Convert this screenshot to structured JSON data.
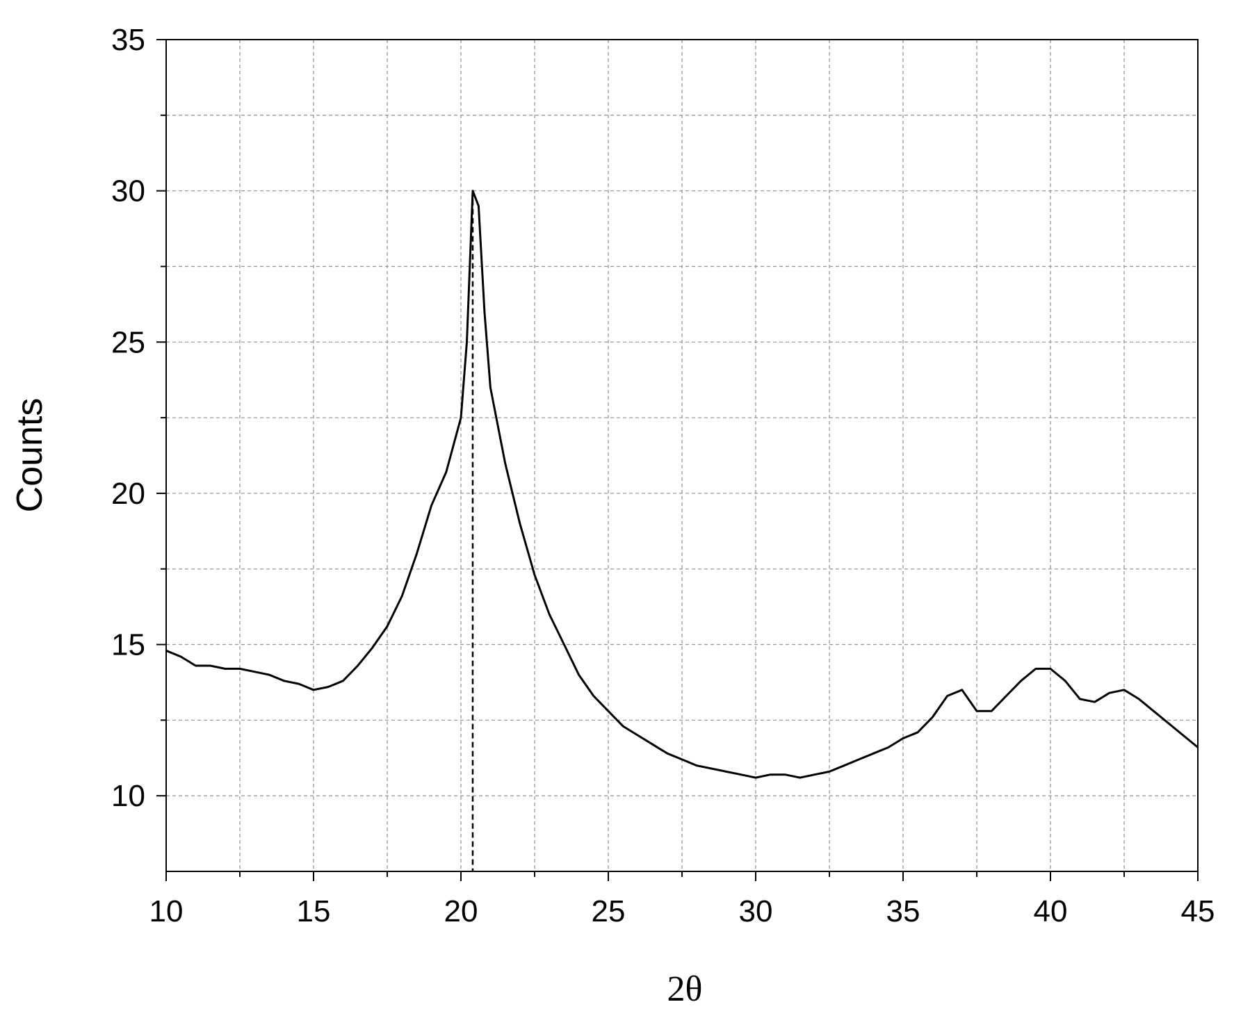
{
  "chart_data": {
    "type": "line",
    "x_label": "2θ",
    "y_label": "Counts",
    "x": [
      10,
      10.5,
      11,
      11.5,
      12,
      12.5,
      13,
      13.5,
      14,
      14.5,
      15,
      15.5,
      16,
      16.5,
      17,
      17.5,
      18,
      18.5,
      19,
      19.5,
      20,
      20.2,
      20.4,
      20.6,
      20.8,
      21,
      21.5,
      22,
      22.5,
      23,
      23.5,
      24,
      24.5,
      25,
      25.5,
      26,
      26.5,
      27,
      27.5,
      28,
      28.5,
      29,
      29.5,
      30,
      30.5,
      31,
      31.5,
      32,
      32.5,
      33,
      33.5,
      34,
      34.5,
      35,
      35.5,
      36,
      36.5,
      37,
      37.5,
      38,
      38.5,
      39,
      39.5,
      40,
      40.5,
      41,
      41.5,
      42,
      42.5,
      43,
      43.5,
      44,
      44.5,
      45
    ],
    "series": [
      {
        "color": "#000000",
        "values": [
          14.8,
          14.6,
          14.3,
          14.3,
          14.2,
          14.2,
          14.1,
          14.0,
          13.8,
          13.7,
          13.5,
          13.6,
          13.8,
          14.3,
          14.9,
          15.6,
          16.6,
          18.0,
          19.6,
          20.7,
          22.5,
          25,
          30,
          29.5,
          26,
          23.5,
          21,
          19,
          17.3,
          16,
          15,
          14.0,
          13.3,
          12.8,
          12.3,
          12.0,
          11.7,
          11.4,
          11.2,
          11.0,
          10.9,
          10.8,
          10.7,
          10.6,
          10.7,
          10.7,
          10.6,
          10.7,
          10.8,
          11.0,
          11.2,
          11.4,
          11.6,
          11.9,
          12.1,
          12.6,
          13.3,
          13.5,
          12.8,
          12.8,
          13.3,
          13.8,
          14.2,
          14.2,
          13.8,
          13.2,
          13.1,
          13.4,
          13.5,
          13.2,
          12.8,
          12.4,
          12.0,
          11.6
        ]
      }
    ],
    "vline": 20.4,
    "xlim": [
      10,
      45
    ],
    "ylim": [
      7.5,
      35
    ],
    "xticks": [
      10,
      15,
      20,
      25,
      30,
      35,
      40,
      45
    ],
    "yticks": [
      10,
      15,
      20,
      25,
      30,
      35
    ],
    "xminorticks": [
      12.5,
      17.5,
      22.5,
      27.5,
      32.5,
      37.5,
      42.5
    ],
    "yminorticks": [
      12.5,
      17.5,
      22.5,
      27.5,
      32.5
    ],
    "grid": true
  }
}
